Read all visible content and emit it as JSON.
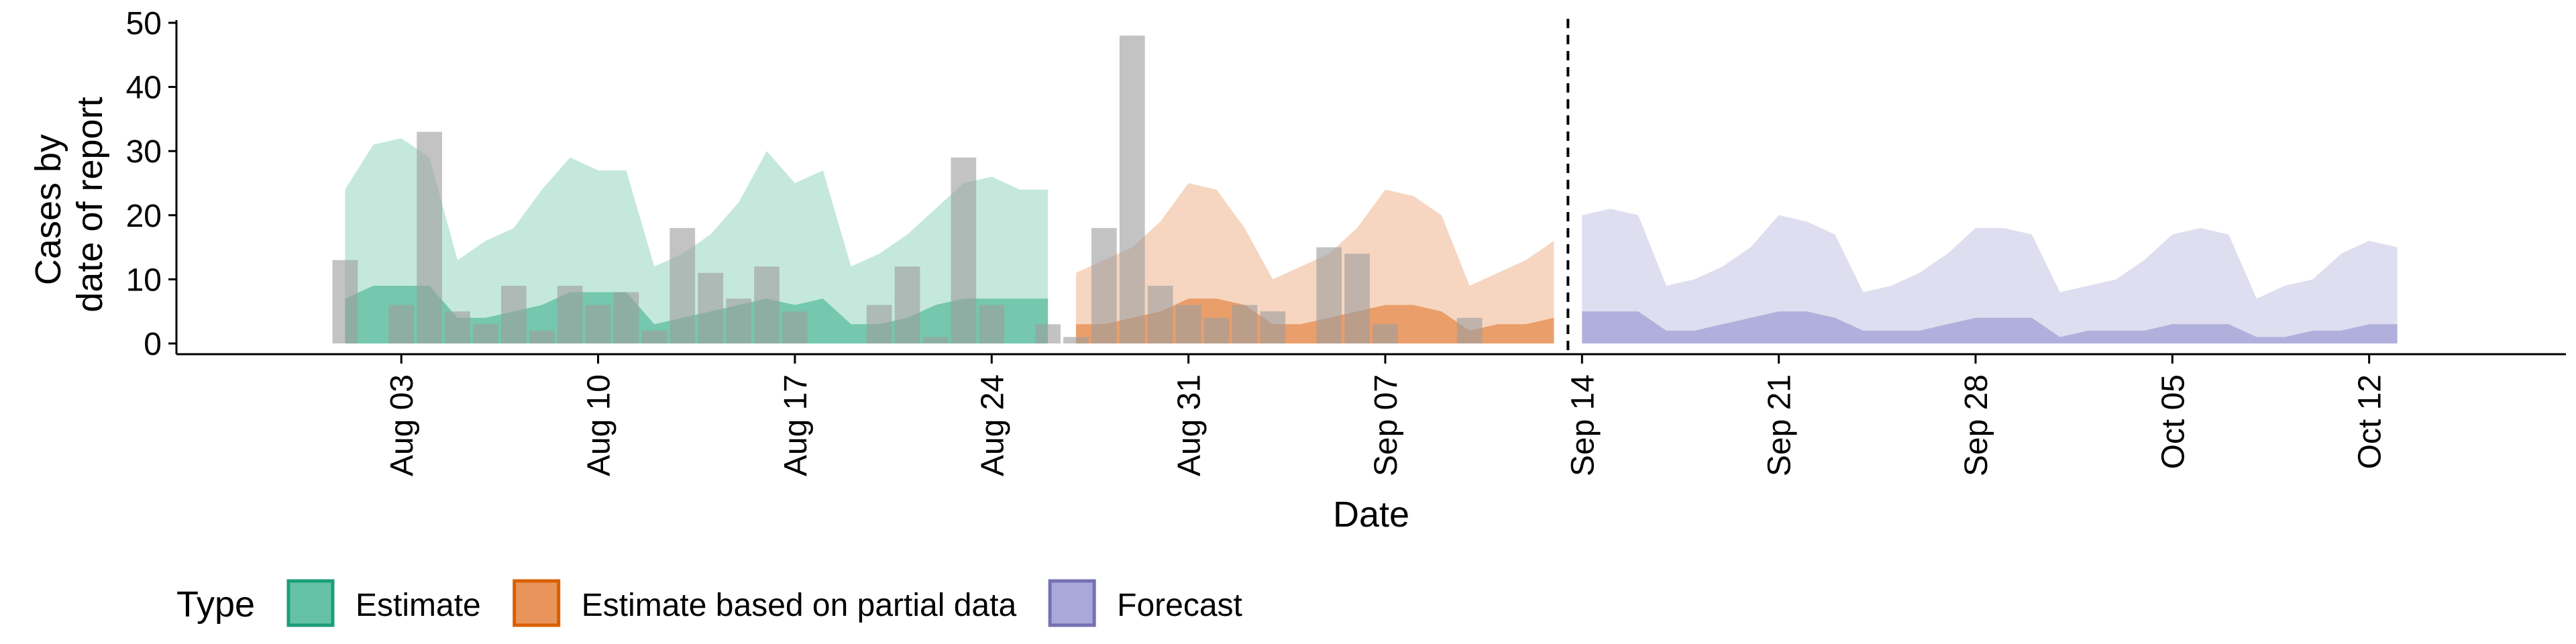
{
  "chart_data": {
    "type": "area",
    "xlabel": "Date",
    "ylabel_lines": [
      "Cases by",
      "date of report"
    ],
    "ylim": [
      0,
      50
    ],
    "y_ticks": [
      0,
      10,
      20,
      30,
      40,
      50
    ],
    "y_tick_labels": [
      "0",
      "10",
      "20",
      "30",
      "40",
      "50"
    ],
    "x_range": [
      "2023-07-26",
      "2023-10-19"
    ],
    "x_ticks": [
      "2023-08-03",
      "2023-08-10",
      "2023-08-17",
      "2023-08-24",
      "2023-08-31",
      "2023-09-07",
      "2023-09-14",
      "2023-09-21",
      "2023-09-28",
      "2023-10-05",
      "2023-10-12"
    ],
    "x_tick_labels": [
      "Aug 03",
      "Aug 10",
      "Aug 17",
      "Aug 24",
      "Aug 31",
      "Sep 07",
      "Sep 14",
      "Sep 21",
      "Sep 28",
      "Oct 05",
      "Oct 12"
    ],
    "vline_date": "2023-09-13",
    "legend": {
      "title": "Type",
      "placement": "bottom",
      "items": [
        {
          "label": "Estimate",
          "fill": "#66c2a5",
          "border": "#1b9e77"
        },
        {
          "label": "Estimate based on partial data",
          "fill": "#e8945a",
          "border": "#d95f02"
        },
        {
          "label": "Forecast",
          "fill": "#a9a8d8",
          "border": "#7570b3"
        }
      ]
    },
    "bar_color": "#9e9e9e",
    "bars": {
      "dates": [
        "2023-08-01",
        "2023-08-02",
        "2023-08-03",
        "2023-08-04",
        "2023-08-05",
        "2023-08-06",
        "2023-08-07",
        "2023-08-08",
        "2023-08-09",
        "2023-08-10",
        "2023-08-11",
        "2023-08-12",
        "2023-08-13",
        "2023-08-14",
        "2023-08-15",
        "2023-08-16",
        "2023-08-17",
        "2023-08-18",
        "2023-08-19",
        "2023-08-20",
        "2023-08-21",
        "2023-08-22",
        "2023-08-23",
        "2023-08-24",
        "2023-08-25",
        "2023-08-26",
        "2023-08-27",
        "2023-08-28",
        "2023-08-29",
        "2023-08-30",
        "2023-08-31",
        "2023-09-01",
        "2023-09-02",
        "2023-09-03",
        "2023-09-04",
        "2023-09-05",
        "2023-09-06",
        "2023-09-07",
        "2023-09-08",
        "2023-09-09",
        "2023-09-10",
        "2023-09-11",
        "2023-09-12",
        "2023-09-13"
      ],
      "values": [
        13,
        0,
        6,
        33,
        5,
        3,
        9,
        2,
        9,
        6,
        8,
        2,
        18,
        11,
        7,
        12,
        5,
        0,
        0,
        6,
        12,
        1,
        29,
        6,
        0,
        3,
        1,
        18,
        48,
        9,
        6,
        4,
        6,
        5,
        0,
        15,
        14,
        3,
        0,
        0,
        4,
        0,
        0,
        0
      ]
    },
    "series": [
      {
        "type": "Estimate",
        "dates": [
          "2023-08-01",
          "2023-08-02",
          "2023-08-03",
          "2023-08-04",
          "2023-08-05",
          "2023-08-06",
          "2023-08-07",
          "2023-08-08",
          "2023-08-09",
          "2023-08-10",
          "2023-08-11",
          "2023-08-12",
          "2023-08-13",
          "2023-08-14",
          "2023-08-15",
          "2023-08-16",
          "2023-08-17",
          "2023-08-18",
          "2023-08-19",
          "2023-08-20",
          "2023-08-21",
          "2023-08-22",
          "2023-08-23",
          "2023-08-24",
          "2023-08-25",
          "2023-08-26"
        ],
        "outer_upper": [
          24,
          31,
          32,
          29,
          13,
          16,
          18,
          24,
          29,
          27,
          27,
          12,
          14,
          17,
          22,
          30,
          25,
          27,
          12,
          14,
          17,
          21,
          25,
          26,
          24,
          24
        ],
        "inner_upper": [
          7,
          9,
          9,
          9,
          4,
          4,
          5,
          6,
          8,
          8,
          8,
          3,
          4,
          5,
          6,
          7,
          6,
          7,
          3,
          3,
          4,
          6,
          7,
          7,
          7,
          7
        ],
        "inner_lower": [
          0,
          0,
          0,
          0,
          0,
          0,
          0,
          0,
          0,
          0,
          0,
          0,
          0,
          0,
          0,
          0,
          0,
          0,
          0,
          0,
          0,
          0,
          0,
          0,
          0,
          0
        ]
      },
      {
        "type": "Estimate based on partial data",
        "dates": [
          "2023-08-27",
          "2023-08-28",
          "2023-08-29",
          "2023-08-30",
          "2023-08-31",
          "2023-09-01",
          "2023-09-02",
          "2023-09-03",
          "2023-09-04",
          "2023-09-05",
          "2023-09-06",
          "2023-09-07",
          "2023-09-08",
          "2023-09-09",
          "2023-09-10",
          "2023-09-11",
          "2023-09-12",
          "2023-09-13"
        ],
        "outer_upper": [
          11,
          13,
          15,
          19,
          25,
          24,
          18,
          10,
          12,
          14,
          18,
          24,
          23,
          20,
          9,
          11,
          13,
          16
        ],
        "inner_upper": [
          3,
          3,
          4,
          5,
          7,
          7,
          6,
          3,
          3,
          4,
          5,
          6,
          6,
          5,
          2,
          3,
          3,
          4
        ],
        "inner_lower": [
          0,
          0,
          0,
          0,
          0,
          0,
          0,
          0,
          0,
          0,
          0,
          0,
          0,
          0,
          0,
          0,
          0,
          0
        ]
      },
      {
        "type": "Forecast",
        "dates": [
          "2023-09-14",
          "2023-09-15",
          "2023-09-16",
          "2023-09-17",
          "2023-09-18",
          "2023-09-19",
          "2023-09-20",
          "2023-09-21",
          "2023-09-22",
          "2023-09-23",
          "2023-09-24",
          "2023-09-25",
          "2023-09-26",
          "2023-09-27",
          "2023-09-28",
          "2023-09-29",
          "2023-09-30",
          "2023-10-01",
          "2023-10-02",
          "2023-10-03",
          "2023-10-04",
          "2023-10-05",
          "2023-10-06",
          "2023-10-07",
          "2023-10-08",
          "2023-10-09",
          "2023-10-10",
          "2023-10-11",
          "2023-10-12",
          "2023-10-13"
        ],
        "outer_upper": [
          20,
          21,
          20,
          9,
          10,
          12,
          15,
          20,
          19,
          17,
          8,
          9,
          11,
          14,
          18,
          18,
          17,
          8,
          9,
          10,
          13,
          17,
          18,
          17,
          7,
          9,
          10,
          14,
          16,
          15
        ],
        "inner_upper": [
          5,
          5,
          5,
          2,
          2,
          3,
          4,
          5,
          5,
          4,
          2,
          2,
          2,
          3,
          4,
          4,
          4,
          1,
          2,
          2,
          2,
          3,
          3,
          3,
          1,
          1,
          2,
          2,
          3,
          3
        ],
        "inner_lower": [
          0,
          0,
          0,
          0,
          0,
          0,
          0,
          0,
          0,
          0,
          0,
          0,
          0,
          0,
          0,
          0,
          0,
          0,
          0,
          0,
          0,
          0,
          0,
          0,
          0,
          0,
          0,
          0,
          0,
          0
        ]
      }
    ]
  }
}
